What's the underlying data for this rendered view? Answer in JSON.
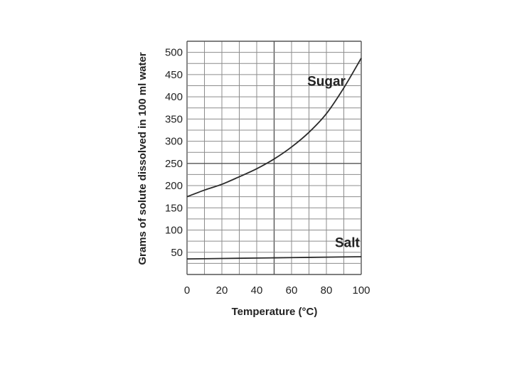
{
  "chart_data": {
    "type": "line",
    "xlabel": "Temperature (°C)",
    "ylabel": "Grams of solute dissolved in 100 ml water",
    "xlim": [
      0,
      100
    ],
    "ylim": [
      0,
      525
    ],
    "xticks": [
      0,
      20,
      40,
      60,
      80,
      100
    ],
    "yticks": [
      50,
      100,
      150,
      200,
      250,
      300,
      350,
      400,
      450,
      500
    ],
    "grid": true,
    "colors": {
      "line": "#2b2b2b",
      "grid": "#8c8c8c",
      "text": "#222222"
    },
    "series": [
      {
        "name": "Sugar",
        "x": [
          0,
          10,
          20,
          30,
          40,
          50,
          60,
          70,
          80,
          90,
          100
        ],
        "y": [
          175,
          190,
          203,
          220,
          238,
          260,
          287,
          320,
          362,
          420,
          487
        ]
      },
      {
        "name": "Salt",
        "x": [
          0,
          20,
          40,
          60,
          80,
          100
        ],
        "y": [
          35,
          36,
          37,
          38,
          39,
          40
        ]
      }
    ]
  }
}
